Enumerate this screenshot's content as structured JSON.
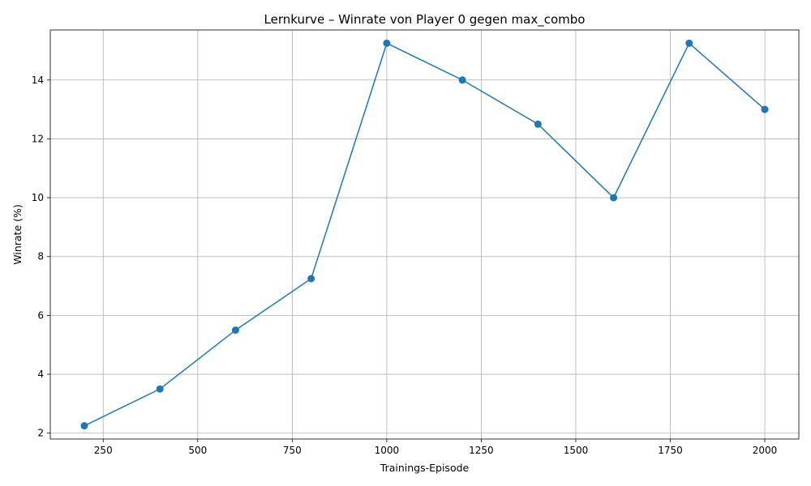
{
  "chart_data": {
    "type": "line",
    "title": "Lernkurve – Winrate von Player 0 gegen max_combo",
    "xlabel": "Trainings-Episode",
    "ylabel": "Winrate (%)",
    "x": [
      200,
      400,
      600,
      800,
      1000,
      1200,
      1400,
      1600,
      1800,
      2000
    ],
    "series": [
      {
        "values": [
          2.25,
          3.5,
          5.5,
          7.25,
          15.25,
          14.0,
          12.5,
          10.0,
          15.25,
          13.0
        ]
      }
    ],
    "xlim": [
      110,
      2090
    ],
    "ylim": [
      1.8,
      15.7
    ],
    "xticks": [
      250,
      500,
      750,
      1000,
      1250,
      1500,
      1750,
      2000
    ],
    "yticks": [
      2,
      4,
      6,
      8,
      10,
      12,
      14
    ],
    "grid": true,
    "marker": "circle",
    "color": "#1f77b4"
  }
}
